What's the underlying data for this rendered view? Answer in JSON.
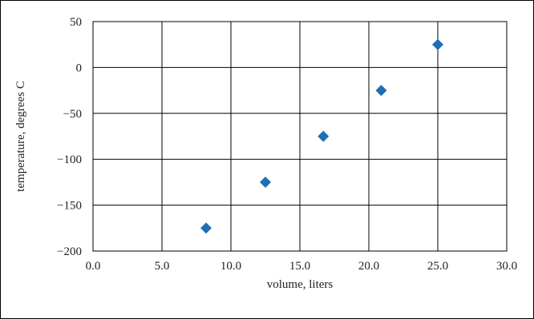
{
  "chart_data": {
    "type": "scatter",
    "title": "",
    "xlabel": "volume, liters",
    "ylabel": "temperature, degrees C",
    "xlim": [
      0,
      30
    ],
    "ylim": [
      -200,
      50
    ],
    "xticks": [
      0,
      5,
      10,
      15,
      20,
      25,
      30
    ],
    "yticks": [
      -200,
      -150,
      -100,
      -50,
      0,
      50
    ],
    "xtick_labels": [
      "0.0",
      "5.0",
      "10.0",
      "15.0",
      "20.0",
      "25.0",
      "30.0"
    ],
    "ytick_labels": [
      "−200",
      "−150",
      "−100",
      "−50",
      "0",
      "50"
    ],
    "grid": true,
    "legend": "none",
    "marker": "diamond",
    "marker_color": "#1f6fb5",
    "series": [
      {
        "x": [
          8.2,
          12.5,
          16.7,
          20.9,
          25.0
        ],
        "y": [
          -175,
          -125,
          -75,
          -25,
          25
        ]
      }
    ]
  }
}
